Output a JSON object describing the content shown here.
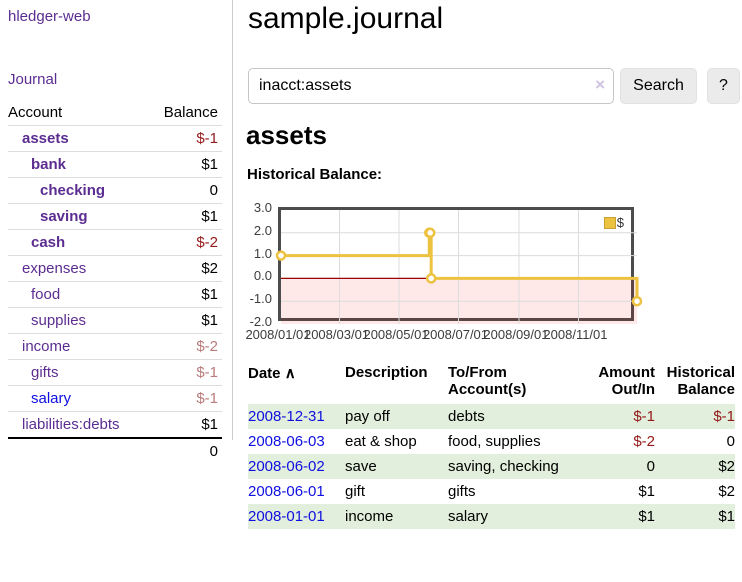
{
  "app": {
    "title": "hledger-web",
    "nav_journal": "Journal"
  },
  "sidebar": {
    "headers": {
      "account": "Account",
      "balance": "Balance"
    },
    "accounts": [
      {
        "name": "assets",
        "balance": "$-1"
      },
      {
        "name": "bank",
        "balance": "$1"
      },
      {
        "name": "checking",
        "balance": "0"
      },
      {
        "name": "saving",
        "balance": "$1"
      },
      {
        "name": "cash",
        "balance": "$-2"
      },
      {
        "name": "expenses",
        "balance": "$2"
      },
      {
        "name": "food",
        "balance": "$1"
      },
      {
        "name": "supplies",
        "balance": "$1"
      },
      {
        "name": "income",
        "balance": "$-2"
      },
      {
        "name": "gifts",
        "balance": "$-1"
      },
      {
        "name": "salary",
        "balance": "$-1"
      },
      {
        "name": "liabilities:debts",
        "balance": "$1"
      }
    ],
    "total": "0"
  },
  "header": {
    "title": "sample.journal"
  },
  "search": {
    "value": "inacct:assets",
    "clear_icon": "×",
    "button_label": "Search",
    "help_label": "?"
  },
  "account_page": {
    "heading": "assets",
    "chart_label": "Historical Balance:"
  },
  "chart_data": {
    "type": "line",
    "title": "Historical Balance:",
    "step": true,
    "series": [
      {
        "name": "$",
        "color": "#edc240",
        "points": [
          [
            "2008-01-01",
            1
          ],
          [
            "2008-06-01",
            2
          ],
          [
            "2008-06-02",
            2
          ],
          [
            "2008-06-03",
            0
          ],
          [
            "2008-12-31",
            -1
          ]
        ]
      }
    ],
    "x_range": [
      "2008-01-01",
      "2008-12-31"
    ],
    "ylim": [
      -2,
      3
    ],
    "y_ticks": [
      "3.0",
      "2.0",
      "1.0",
      "0.0",
      "-1.0",
      "-2.0"
    ],
    "x_ticks": [
      "2008/01/01",
      "2008/03/01",
      "2008/05/01",
      "2008/07/01",
      "2008/09/01",
      "2008/11/01"
    ],
    "grid": true,
    "zero_line_color": "#990000",
    "negative_region_fill": "rgba(255,0,0,0.09)",
    "legend": {
      "label": "$",
      "position": "top-right",
      "swatch_color": "#edc240"
    }
  },
  "register": {
    "headers": {
      "date": "Date",
      "sort_icon": "∧",
      "description": "Description",
      "account": "To/From Account(s)",
      "amount": "Amount Out/In",
      "balance": "Historical Balance"
    },
    "rows": [
      {
        "date": "2008-12-31",
        "description": "pay off",
        "account": "debts",
        "amount": "$-1",
        "balance": "$-1"
      },
      {
        "date": "2008-06-03",
        "description": "eat & shop",
        "account": "food, supplies",
        "amount": "$-2",
        "balance": "0"
      },
      {
        "date": "2008-06-02",
        "description": "save",
        "account": "saving, checking",
        "amount": "0",
        "balance": "$2"
      },
      {
        "date": "2008-06-01",
        "description": "gift",
        "account": "gifts",
        "amount": "$1",
        "balance": "$2"
      },
      {
        "date": "2008-01-01",
        "description": "income",
        "account": "salary",
        "amount": "$1",
        "balance": "$1"
      }
    ]
  }
}
